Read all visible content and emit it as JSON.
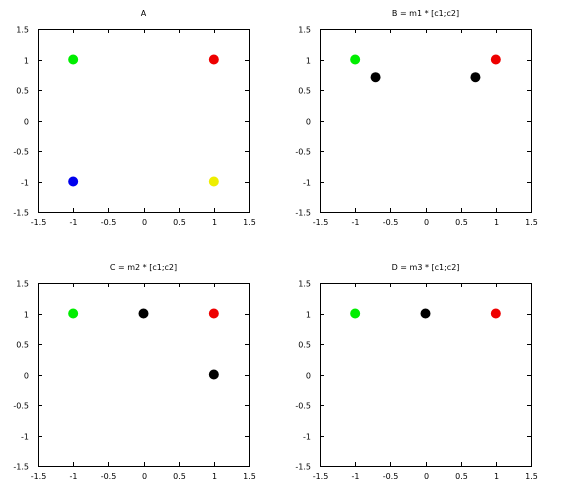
{
  "chart_data": [
    {
      "type": "scatter",
      "title": "A",
      "xlim": [
        -1.5,
        1.5
      ],
      "ylim": [
        -1.5,
        1.5
      ],
      "x_ticks": [
        "-1.5",
        "-1",
        "-0.5",
        "0",
        "0.5",
        "1",
        "1.5"
      ],
      "y_ticks": [
        "1.5",
        "1",
        "0.5",
        "0",
        "-0.5",
        "-1",
        "-1.5"
      ],
      "grid": false,
      "points": [
        {
          "x": -1,
          "y": 1,
          "color": "#00ee00"
        },
        {
          "x": 1,
          "y": 1,
          "color": "#ee0000"
        },
        {
          "x": -1,
          "y": -1,
          "color": "#0000ee"
        },
        {
          "x": 1,
          "y": -1,
          "color": "#eeee00"
        }
      ]
    },
    {
      "type": "scatter",
      "title": "B = m1 * [c1;c2]",
      "xlim": [
        -1.5,
        1.5
      ],
      "ylim": [
        -1.5,
        1.5
      ],
      "x_ticks": [
        "-1.5",
        "-1",
        "-0.5",
        "0",
        "0.5",
        "1",
        "1.5"
      ],
      "y_ticks": [
        "1.5",
        "1",
        "0.5",
        "0",
        "-0.5",
        "-1",
        "-1.5"
      ],
      "grid": false,
      "points": [
        {
          "x": -1,
          "y": 1,
          "color": "#00ee00"
        },
        {
          "x": 1,
          "y": 1,
          "color": "#ee0000"
        },
        {
          "x": -0.71,
          "y": 0.71,
          "color": "#000000"
        },
        {
          "x": 0.71,
          "y": 0.71,
          "color": "#000000"
        }
      ]
    },
    {
      "type": "scatter",
      "title": "C = m2 * [c1;c2]",
      "xlim": [
        -1.5,
        1.5
      ],
      "ylim": [
        -1.5,
        1.5
      ],
      "x_ticks": [
        "-1.5",
        "-1",
        "-0.5",
        "0",
        "0.5",
        "1",
        "1.5"
      ],
      "y_ticks": [
        "1.5",
        "1",
        "0.5",
        "0",
        "-0.5",
        "-1",
        "-1.5"
      ],
      "grid": false,
      "points": [
        {
          "x": -1,
          "y": 1,
          "color": "#00ee00"
        },
        {
          "x": 0,
          "y": 1,
          "color": "#000000"
        },
        {
          "x": 1,
          "y": 1,
          "color": "#ee0000"
        },
        {
          "x": 1,
          "y": 0,
          "color": "#000000"
        }
      ]
    },
    {
      "type": "scatter",
      "title": "D = m3 * [c1;c2]",
      "xlim": [
        -1.5,
        1.5
      ],
      "ylim": [
        -1.5,
        1.5
      ],
      "x_ticks": [
        "-1.5",
        "-1",
        "-0.5",
        "0",
        "0.5",
        "1",
        "1.5"
      ],
      "y_ticks": [
        "1.5",
        "1",
        "0.5",
        "0",
        "-0.5",
        "-1",
        "-1.5"
      ],
      "grid": false,
      "points": [
        {
          "x": -1,
          "y": 1,
          "color": "#00ee00"
        },
        {
          "x": 0,
          "y": 1,
          "color": "#000000"
        },
        {
          "x": 1,
          "y": 1,
          "color": "#ee0000"
        }
      ]
    }
  ]
}
